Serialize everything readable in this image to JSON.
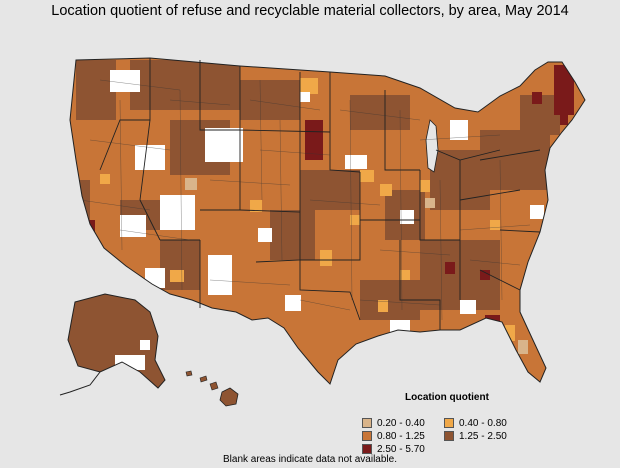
{
  "title": "Location quotient of refuse and recyclable material collectors, by area, May 2014",
  "legend": {
    "title": "Location quotient",
    "items": [
      {
        "label": "0.20 - 0.40",
        "color": "#d9b48a"
      },
      {
        "label": "0.40 - 0.80",
        "color": "#f0a848"
      },
      {
        "label": "0.80 - 1.25",
        "color": "#c87537"
      },
      {
        "label": "1.25 - 2.50",
        "color": "#8e5432"
      },
      {
        "label": "2.50 - 5.70",
        "color": "#7a1a1a"
      }
    ]
  },
  "footnote": "Blank areas indicate data not available.",
  "colors": {
    "background": "#e6e6e6",
    "no_data": "#ffffff",
    "border": "#222222"
  }
}
